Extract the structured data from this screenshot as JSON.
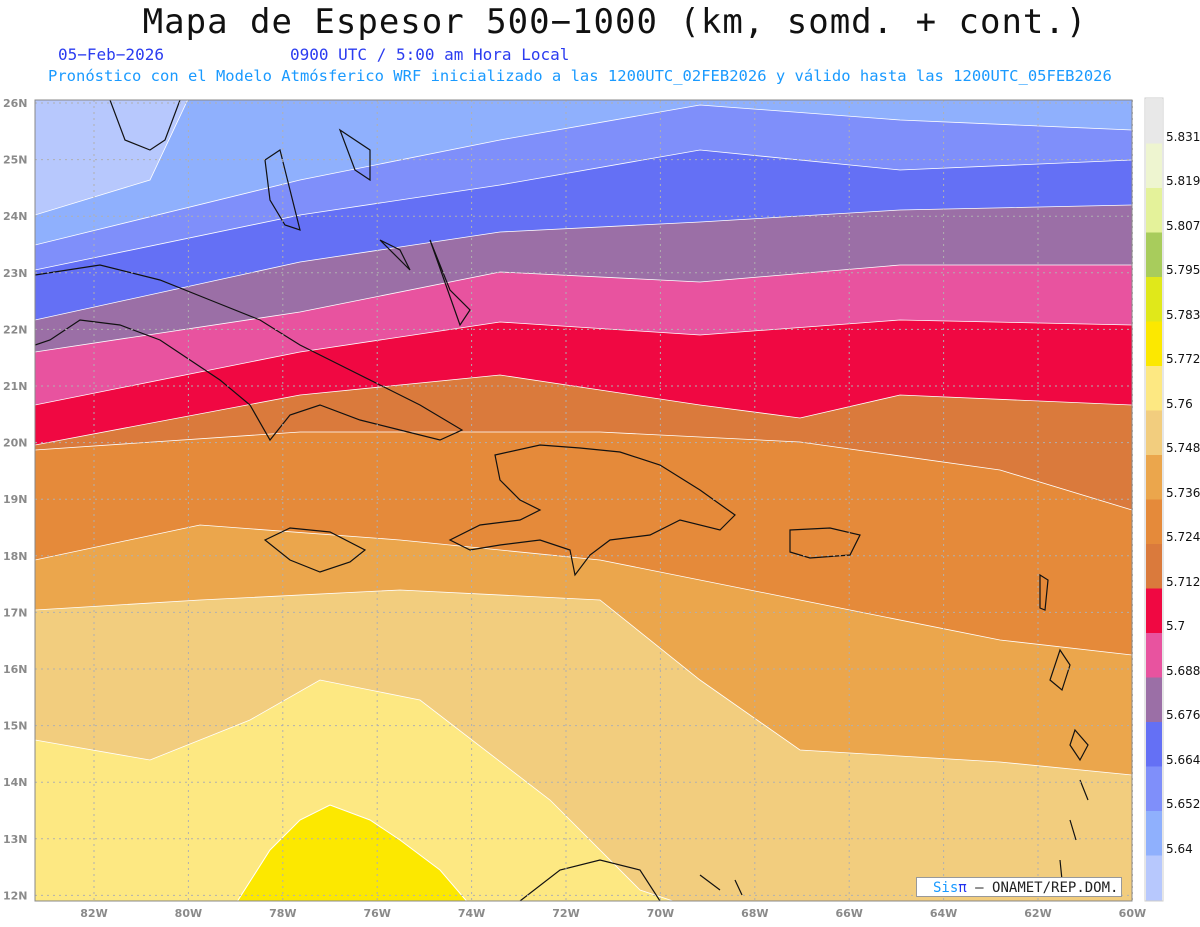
{
  "title": "Mapa de Espesor 500−1000 (km, somd. + cont.)",
  "date": "05−Feb−2026",
  "time": "0900 UTC / 5:00 am Hora Local",
  "model_line": "Pronóstico con el Modelo Atmósferico WRF inicializado a las 1200UTC_02FEB2026 y válido hasta las  1200UTC_05FEB2026",
  "lat_labels": [
    "26N",
    "25N",
    "24N",
    "23N",
    "22N",
    "21N",
    "20N",
    "19N",
    "18N",
    "17N",
    "16N",
    "15N",
    "14N",
    "13N",
    "12N"
  ],
  "lon_labels": [
    "82W",
    "80W",
    "78W",
    "76W",
    "74W",
    "72W",
    "70W",
    "68W",
    "66W",
    "64W",
    "62W",
    "60W"
  ],
  "colorbar": {
    "labels": [
      "5.831",
      "5.819",
      "5.807",
      "5.795",
      "5.783",
      "5.772",
      "5.76",
      "5.748",
      "5.736",
      "5.724",
      "5.712",
      "5.7",
      "5.688",
      "5.676",
      "5.664",
      "5.652",
      "5.64"
    ],
    "colors": [
      "#e8e8e8",
      "#eef5d0",
      "#e4f29a",
      "#a8cc5c",
      "#e0e81a",
      "#fce800",
      "#fde882",
      "#f2cd7e",
      "#eba64c",
      "#e58a3a",
      "#da7a3c",
      "#f00842",
      "#e8539f",
      "#9b6fa6",
      "#6470f5",
      "#7f8ffa",
      "#8fb0fd",
      "#b7c8fd"
    ]
  },
  "credit": {
    "sis": "Sis",
    "pi": "π",
    "rest": "– ONAMET/REP.DOM."
  }
}
